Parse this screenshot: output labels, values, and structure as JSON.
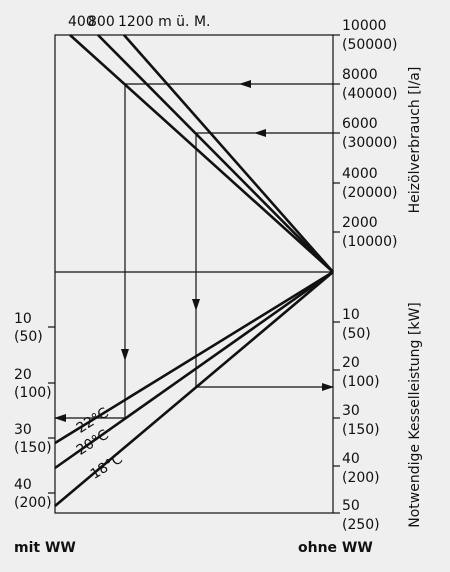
{
  "top_labels": [
    "400",
    "800",
    "1200 m ü. M."
  ],
  "right_upper": [
    {
      "value": "10000",
      "alt": "(50000)"
    },
    {
      "value": "8000",
      "alt": "(40000)"
    },
    {
      "value": "6000",
      "alt": "(30000)"
    },
    {
      "value": "4000",
      "alt": "(20000)"
    },
    {
      "value": "2000",
      "alt": "(10000)"
    }
  ],
  "right_lower": [
    {
      "value": "10",
      "alt": "(50)"
    },
    {
      "value": "20",
      "alt": "(100)"
    },
    {
      "value": "30",
      "alt": "(150)"
    },
    {
      "value": "40",
      "alt": "(200)"
    },
    {
      "value": "50",
      "alt": "(250)"
    }
  ],
  "left_lower": [
    {
      "value": "10",
      "alt": "(50)"
    },
    {
      "value": "20",
      "alt": "(100)"
    },
    {
      "value": "30",
      "alt": "(150)"
    },
    {
      "value": "40",
      "alt": "(200)"
    }
  ],
  "temperatures": [
    "22°C",
    "20°C",
    "18°C"
  ],
  "axis_titles": {
    "upper": "Heizölverbrauch [l/a]",
    "lower": "Notwendige Kesselleistung [kW]"
  },
  "footer": {
    "left": "mit WW",
    "right": "ohne WW"
  }
}
